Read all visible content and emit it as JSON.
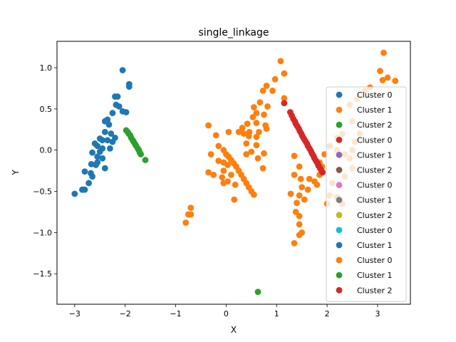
{
  "chart_data": {
    "type": "scatter",
    "title": "single_linkage",
    "xlabel": "X",
    "ylabel": "Y",
    "xlim": [
      -3.35,
      3.65
    ],
    "ylim": [
      -1.87,
      1.32
    ],
    "xticks": [
      -3,
      -2,
      -1,
      0,
      1,
      2,
      3
    ],
    "xtick_labels": [
      "−3",
      "−2",
      "−1",
      "0",
      "1",
      "2",
      "3"
    ],
    "yticks": [
      -1.5,
      -1.0,
      -0.5,
      0.0,
      0.5,
      1.0
    ],
    "ytick_labels": [
      "−1.5",
      "−1.0",
      "−0.5",
      "0.0",
      "0.5",
      "1.0"
    ],
    "grid": false,
    "legend_location": "right",
    "series": [
      {
        "name": "Cluster 0",
        "color": "#1f77b4",
        "points": [
          [
            -2.05,
            0.97
          ],
          [
            -1.92,
            0.8
          ],
          [
            -1.92,
            0.77
          ],
          [
            -2.2,
            0.65
          ],
          [
            -2.15,
            0.65
          ],
          [
            -2.18,
            0.55
          ],
          [
            -2.12,
            0.53
          ],
          [
            -2.05,
            0.47
          ],
          [
            -1.98,
            0.46
          ],
          [
            -2.25,
            0.45
          ],
          [
            -2.35,
            0.37
          ],
          [
            -2.4,
            0.35
          ],
          [
            -2.32,
            0.31
          ],
          [
            -2.4,
            0.22
          ],
          [
            -2.28,
            0.2
          ],
          [
            -2.2,
            0.15
          ],
          [
            -2.5,
            0.14
          ],
          [
            -2.45,
            0.12
          ],
          [
            -2.35,
            0.12
          ],
          [
            -2.25,
            0.1
          ],
          [
            -2.6,
            0.08
          ],
          [
            -2.55,
            0.05
          ],
          [
            -2.45,
            0.02
          ],
          [
            -2.3,
            0.02
          ],
          [
            -2.5,
            -0.02
          ],
          [
            -2.65,
            -0.03
          ],
          [
            -2.55,
            -0.08
          ],
          [
            -2.45,
            -0.1
          ],
          [
            -2.55,
            -0.15
          ],
          [
            -2.67,
            -0.17
          ],
          [
            -2.58,
            -0.18
          ],
          [
            -2.4,
            -0.22
          ],
          [
            -2.8,
            -0.26
          ],
          [
            -2.68,
            -0.28
          ],
          [
            -2.65,
            -0.32
          ],
          [
            -2.72,
            -0.4
          ],
          [
            -2.85,
            -0.48
          ],
          [
            -2.8,
            -0.48
          ],
          [
            -3.0,
            -0.53
          ]
        ]
      },
      {
        "name": "Cluster 1",
        "color": "#ff7f0e",
        "points": [
          [
            1.08,
            1.08
          ],
          [
            1.15,
            0.93
          ],
          [
            0.97,
            0.86
          ],
          [
            0.8,
            0.78
          ],
          [
            0.73,
            0.72
          ],
          [
            0.92,
            0.72
          ],
          [
            1.15,
            0.63
          ],
          [
            0.67,
            0.58
          ],
          [
            0.82,
            0.53
          ],
          [
            0.55,
            0.52
          ],
          [
            0.6,
            0.45
          ],
          [
            0.75,
            0.43
          ],
          [
            0.53,
            0.4
          ],
          [
            0.42,
            0.32
          ],
          [
            0.6,
            0.33
          ],
          [
            0.78,
            0.3
          ],
          [
            0.8,
            0.26
          ],
          [
            0.32,
            0.27
          ],
          [
            0.46,
            0.22
          ],
          [
            0.35,
            0.2
          ],
          [
            0.25,
            0.22
          ],
          [
            0.05,
            0.22
          ],
          [
            0.65,
            0.22
          ],
          [
            0.45,
            0.17
          ],
          [
            0.6,
            0.16
          ],
          [
            0.4,
            0.08
          ],
          [
            0.6,
            0.06
          ],
          [
            0.5,
            -0.02
          ],
          [
            0.4,
            -0.05
          ],
          [
            0.75,
            -0.04
          ],
          [
            0.63,
            -0.1
          ],
          [
            0.73,
            -0.22
          ],
          [
            0.03,
            -0.18
          ],
          [
            -0.05,
            -0.15
          ],
          [
            -0.3,
            -0.05
          ],
          [
            -0.15,
            -0.13
          ],
          [
            -0.05,
            -0.25
          ],
          [
            -0.35,
            -0.27
          ],
          [
            -0.25,
            -0.3
          ],
          [
            -0.08,
            -0.33
          ],
          [
            0.03,
            -0.38
          ],
          [
            -0.05,
            -0.4
          ],
          [
            0.18,
            -0.42
          ],
          [
            0.1,
            -0.3
          ],
          [
            0.16,
            -0.6
          ],
          [
            -0.35,
            0.3
          ],
          [
            -0.2,
            0.18
          ],
          [
            -0.15,
            0.05
          ],
          [
            -0.05,
            0.0
          ],
          [
            0.0,
            -0.05
          ],
          [
            0.05,
            -0.08
          ],
          [
            0.1,
            -0.12
          ],
          [
            0.15,
            -0.16
          ],
          [
            0.2,
            -0.2
          ],
          [
            0.25,
            -0.25
          ],
          [
            0.3,
            -0.3
          ],
          [
            0.35,
            -0.35
          ],
          [
            0.4,
            -0.4
          ],
          [
            0.45,
            -0.45
          ],
          [
            0.5,
            -0.5
          ],
          [
            0.55,
            -0.54
          ],
          [
            -0.7,
            -0.7
          ],
          [
            -0.75,
            -0.78
          ],
          [
            -0.7,
            -0.78
          ],
          [
            -0.8,
            -0.88
          ],
          [
            1.35,
            -0.07
          ],
          [
            1.45,
            -0.2
          ],
          [
            1.35,
            -0.3
          ],
          [
            1.48,
            -0.35
          ],
          [
            1.5,
            -0.45
          ],
          [
            1.28,
            -0.53
          ],
          [
            1.45,
            -0.55
          ],
          [
            1.55,
            -0.6
          ],
          [
            1.4,
            -0.64
          ],
          [
            1.38,
            -0.75
          ],
          [
            1.45,
            -0.8
          ],
          [
            1.45,
            -0.9
          ],
          [
            1.5,
            -1.0
          ],
          [
            1.45,
            -1.03
          ],
          [
            1.35,
            -1.13
          ],
          [
            1.65,
            -0.35
          ],
          [
            1.75,
            -0.38
          ],
          [
            1.62,
            -0.48
          ],
          [
            1.8,
            -0.42
          ],
          [
            1.85,
            -0.3
          ],
          [
            1.9,
            -0.2
          ],
          [
            1.85,
            -0.15
          ],
          [
            1.95,
            -0.05
          ],
          [
            2.05,
            0.05
          ],
          [
            2.2,
            0.0
          ],
          [
            2.35,
            -0.05
          ],
          [
            2.45,
            -0.1
          ],
          [
            2.5,
            -0.22
          ],
          [
            2.35,
            -0.32
          ],
          [
            2.1,
            -0.4
          ],
          [
            2.05,
            -0.55
          ],
          [
            2.2,
            -0.57
          ],
          [
            2.3,
            -0.65
          ],
          [
            2.0,
            -0.65
          ],
          [
            2.5,
            0.0
          ],
          [
            2.55,
            0.1
          ],
          [
            2.65,
            0.2
          ],
          [
            2.5,
            0.35
          ],
          [
            2.45,
            0.55
          ],
          [
            2.6,
            0.62
          ],
          [
            2.75,
            0.72
          ],
          [
            2.85,
            0.76
          ],
          [
            3.05,
            0.96
          ],
          [
            3.1,
            0.85
          ],
          [
            3.2,
            0.88
          ],
          [
            3.35,
            0.84
          ],
          [
            3.12,
            1.18
          ],
          [
            2.2,
            0.15
          ],
          [
            2.3,
            0.2
          ]
        ]
      },
      {
        "name": "Cluster 2",
        "color": "#2ca02c",
        "points": [
          [
            -1.98,
            0.24
          ],
          [
            -1.95,
            0.22
          ],
          [
            -1.93,
            0.2
          ],
          [
            -1.9,
            0.18
          ],
          [
            -1.88,
            0.15
          ],
          [
            -1.85,
            0.12
          ],
          [
            -1.83,
            0.1
          ],
          [
            -1.8,
            0.07
          ],
          [
            -1.78,
            0.05
          ],
          [
            -1.75,
            0.02
          ],
          [
            -1.73,
            0.0
          ],
          [
            -1.71,
            -0.03
          ],
          [
            -1.69,
            -0.05
          ],
          [
            -1.6,
            -0.12
          ]
        ]
      },
      {
        "name": "Cluster 0",
        "color": "#d62728",
        "points": [
          [
            1.15,
            0.57
          ],
          [
            1.27,
            0.46
          ],
          [
            1.3,
            0.42
          ],
          [
            1.33,
            0.38
          ],
          [
            1.36,
            0.35
          ],
          [
            1.38,
            0.32
          ],
          [
            1.41,
            0.29
          ],
          [
            1.44,
            0.26
          ],
          [
            1.46,
            0.23
          ],
          [
            1.49,
            0.2
          ],
          [
            1.51,
            0.17
          ],
          [
            1.54,
            0.14
          ],
          [
            1.57,
            0.11
          ],
          [
            1.6,
            0.08
          ],
          [
            1.62,
            0.05
          ],
          [
            1.65,
            0.02
          ],
          [
            1.68,
            -0.01
          ],
          [
            1.7,
            -0.04
          ],
          [
            1.73,
            -0.07
          ],
          [
            1.75,
            -0.1
          ],
          [
            1.78,
            -0.13
          ],
          [
            1.81,
            -0.16
          ],
          [
            1.83,
            -0.19
          ],
          [
            1.86,
            -0.22
          ],
          [
            1.89,
            -0.25
          ],
          [
            1.91,
            -0.27
          ]
        ]
      },
      {
        "name": "Cluster 1",
        "color": "#9467bd",
        "points": []
      },
      {
        "name": "Cluster 2",
        "color": "#8c564b",
        "points": []
      },
      {
        "name": "Cluster 0",
        "color": "#e377c2",
        "points": []
      },
      {
        "name": "Cluster 1",
        "color": "#7f7f7f",
        "points": []
      },
      {
        "name": "Cluster 2",
        "color": "#bcbd22",
        "points": []
      },
      {
        "name": "Cluster 0",
        "color": "#17becf",
        "points": []
      },
      {
        "name": "Cluster 1",
        "color": "#1f77b4",
        "points": []
      },
      {
        "name": "Cluster 0",
        "color": "#ff7f0e",
        "points": []
      },
      {
        "name": "Cluster 1",
        "color": "#2ca02c",
        "points": [
          [
            0.63,
            -1.72
          ]
        ]
      },
      {
        "name": "Cluster 2",
        "color": "#d62728",
        "points": []
      }
    ]
  }
}
